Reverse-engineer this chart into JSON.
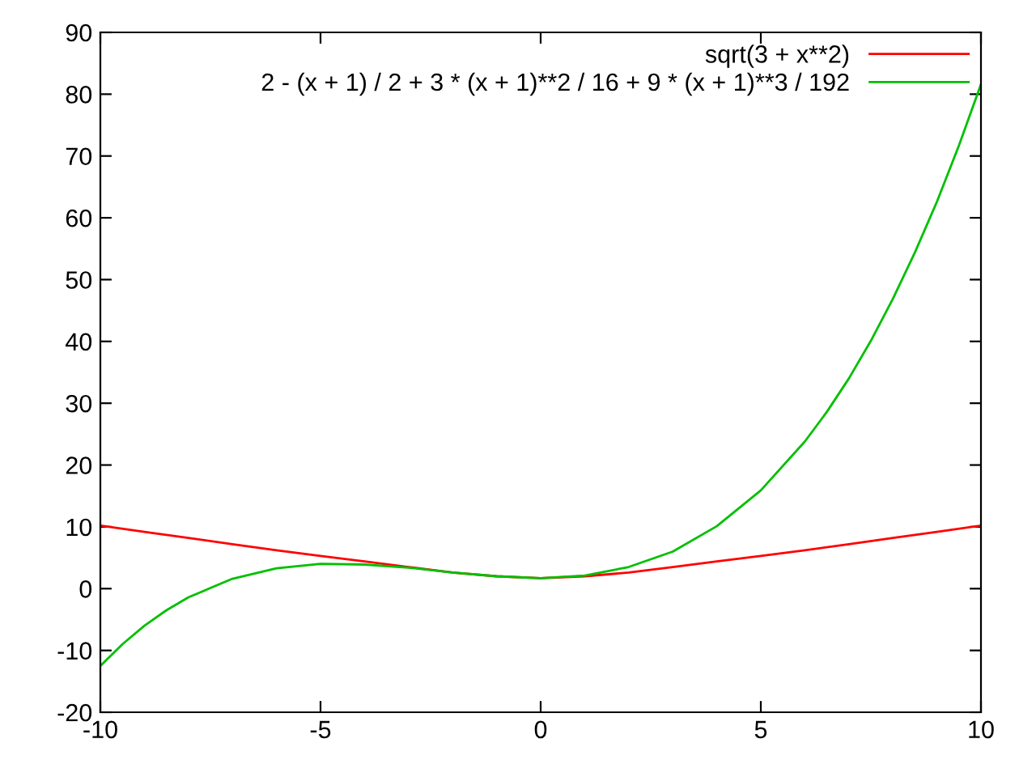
{
  "chart_data": {
    "type": "line",
    "xlim": [
      -10,
      10
    ],
    "ylim": [
      -20,
      90
    ],
    "xticks": [
      -10,
      -5,
      0,
      5,
      10
    ],
    "yticks": [
      -20,
      -10,
      0,
      10,
      20,
      30,
      40,
      50,
      60,
      70,
      80,
      90
    ],
    "grid": false,
    "legend": "top right",
    "marker": "none",
    "line_style": "solid",
    "series": [
      {
        "name": "sqrt(3 + x**2)",
        "color": "#ff0000",
        "x": [
          -10,
          -9,
          -8,
          -7,
          -6,
          -5,
          -4,
          -3,
          -2,
          -1,
          0,
          1,
          2,
          3,
          4,
          5,
          6,
          7,
          8,
          9,
          10
        ],
        "values": [
          10.2,
          9.2,
          8.2,
          7.2,
          6.2,
          5.3,
          4.4,
          3.5,
          2.6,
          2.0,
          1.7,
          2.0,
          2.6,
          3.5,
          4.4,
          5.3,
          6.2,
          7.2,
          8.2,
          9.2,
          10.2
        ]
      },
      {
        "name": "2 - (x + 1) / 2 + 3 * (x + 1)**2 / 16 + 9 * (x + 1)**3 / 192",
        "color": "#00c000",
        "x": [
          -10,
          -9.5,
          -9,
          -8.5,
          -8,
          -7,
          -6,
          -5,
          -4,
          -3,
          -2,
          -1,
          0,
          1,
          2,
          3,
          4,
          5,
          6,
          6.5,
          7,
          7.5,
          8,
          8.5,
          9,
          9.5,
          10
        ],
        "values": [
          -12.5,
          -9.0,
          -6.0,
          -3.5,
          -1.4,
          1.6,
          3.3,
          4.0,
          3.9,
          3.4,
          2.6,
          2.0,
          1.7,
          2.1,
          3.5,
          6.0,
          10.1,
          15.9,
          23.8,
          28.6,
          34.0,
          40.1,
          46.9,
          54.4,
          62.6,
          71.7,
          81.6
        ]
      }
    ]
  }
}
